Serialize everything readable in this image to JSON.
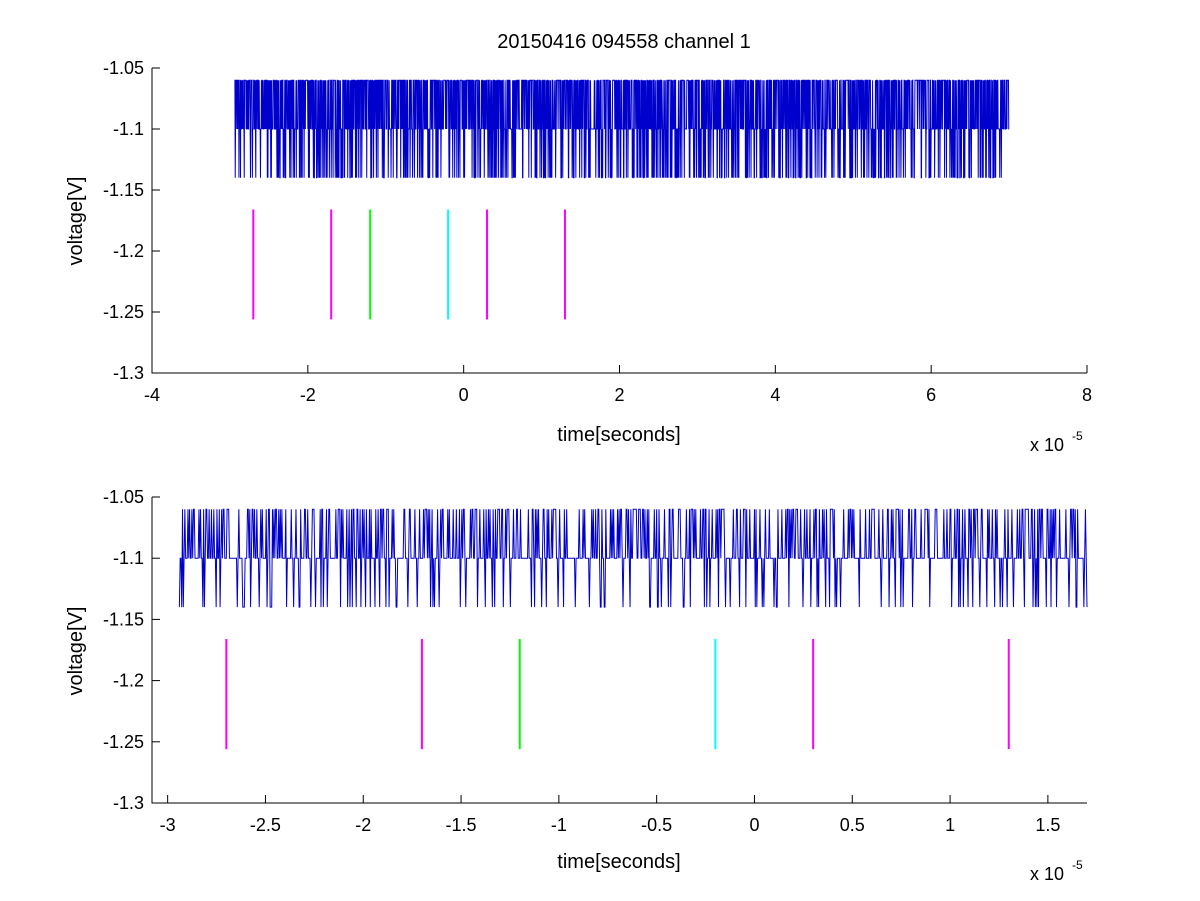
{
  "chart_data": [
    {
      "type": "line",
      "title": "20150416 094558 channel 1",
      "xlabel": "time[seconds]",
      "ylabel": "voltage[V]",
      "x_exponent_label": "x 10",
      "x_exponent_power": "-5",
      "xlim": [
        -4e-05,
        8e-05
      ],
      "ylim": [
        -1.3,
        -1.05
      ],
      "x_ticks": [
        -4e-05,
        -2e-05,
        0,
        2e-05,
        4e-05,
        6e-05,
        8e-05
      ],
      "x_tick_labels": [
        "-4",
        "-2",
        "0",
        "2",
        "4",
        "6",
        "8"
      ],
      "y_ticks": [
        -1.05,
        -1.1,
        -1.15,
        -1.2,
        -1.25,
        -1.3
      ],
      "y_tick_labels": [
        "-1.05",
        "-1.1",
        "-1.15",
        "-1.2",
        "-1.25",
        "-1.3"
      ],
      "grid": false,
      "series": [
        {
          "color": "#0000cc",
          "x_start": -2.94e-05,
          "x_end": 7e-05,
          "dt": 4e-08,
          "levels": [
            -1.06,
            -1.1,
            -1.14
          ],
          "baseline": -1.1,
          "density": 0.9,
          "seed": 11
        }
      ],
      "markers": [
        {
          "x": -2.7e-05,
          "y_top": -1.166,
          "y_bottom": -1.256,
          "color": "#ff00ff"
        },
        {
          "x": -1.7e-05,
          "y_top": -1.166,
          "y_bottom": -1.256,
          "color": "#ff00ff"
        },
        {
          "x": -1.2e-05,
          "y_top": -1.166,
          "y_bottom": -1.256,
          "color": "#00ff00"
        },
        {
          "x": -2e-06,
          "y_top": -1.166,
          "y_bottom": -1.256,
          "color": "#00ffff"
        },
        {
          "x": 3e-06,
          "y_top": -1.166,
          "y_bottom": -1.256,
          "color": "#ff00ff"
        },
        {
          "x": 1.3e-05,
          "y_top": -1.166,
          "y_bottom": -1.256,
          "color": "#ff00ff"
        }
      ]
    },
    {
      "type": "line",
      "title": "",
      "xlabel": "time[seconds]",
      "ylabel": "voltage[V]",
      "x_exponent_label": "x 10",
      "x_exponent_power": "-5",
      "xlim": [
        -3.08e-05,
        1.7e-05
      ],
      "ylim": [
        -1.3,
        -1.05
      ],
      "x_ticks": [
        -3e-05,
        -2.5e-05,
        -2e-05,
        -1.5e-05,
        -1e-05,
        -5e-06,
        0,
        5e-06,
        1e-05,
        1.5e-05
      ],
      "x_tick_labels": [
        "-3",
        "-2.5",
        "-2",
        "-1.5",
        "-1",
        "-0.5",
        "0",
        "0.5",
        "1",
        "1.5"
      ],
      "y_ticks": [
        -1.05,
        -1.1,
        -1.15,
        -1.2,
        -1.25,
        -1.3
      ],
      "y_tick_labels": [
        "-1.05",
        "-1.1",
        "-1.15",
        "-1.2",
        "-1.25",
        "-1.3"
      ],
      "grid": false,
      "series": [
        {
          "color": "#0000cc",
          "x_start": -2.94e-05,
          "x_end": 1.7e-05,
          "dt": 4e-08,
          "levels": [
            -1.06,
            -1.1,
            -1.14
          ],
          "baseline": -1.1,
          "density": 0.55,
          "seed": 7
        }
      ],
      "markers": [
        {
          "x": -2.7e-05,
          "y_top": -1.166,
          "y_bottom": -1.256,
          "color": "#ff00ff"
        },
        {
          "x": -1.7e-05,
          "y_top": -1.166,
          "y_bottom": -1.256,
          "color": "#ff00ff"
        },
        {
          "x": -1.2e-05,
          "y_top": -1.166,
          "y_bottom": -1.256,
          "color": "#00ff00"
        },
        {
          "x": -2e-06,
          "y_top": -1.166,
          "y_bottom": -1.256,
          "color": "#00ffff"
        },
        {
          "x": 3e-06,
          "y_top": -1.166,
          "y_bottom": -1.256,
          "color": "#ff00ff"
        },
        {
          "x": 1.3e-05,
          "y_top": -1.166,
          "y_bottom": -1.256,
          "color": "#ff00ff"
        }
      ]
    }
  ]
}
